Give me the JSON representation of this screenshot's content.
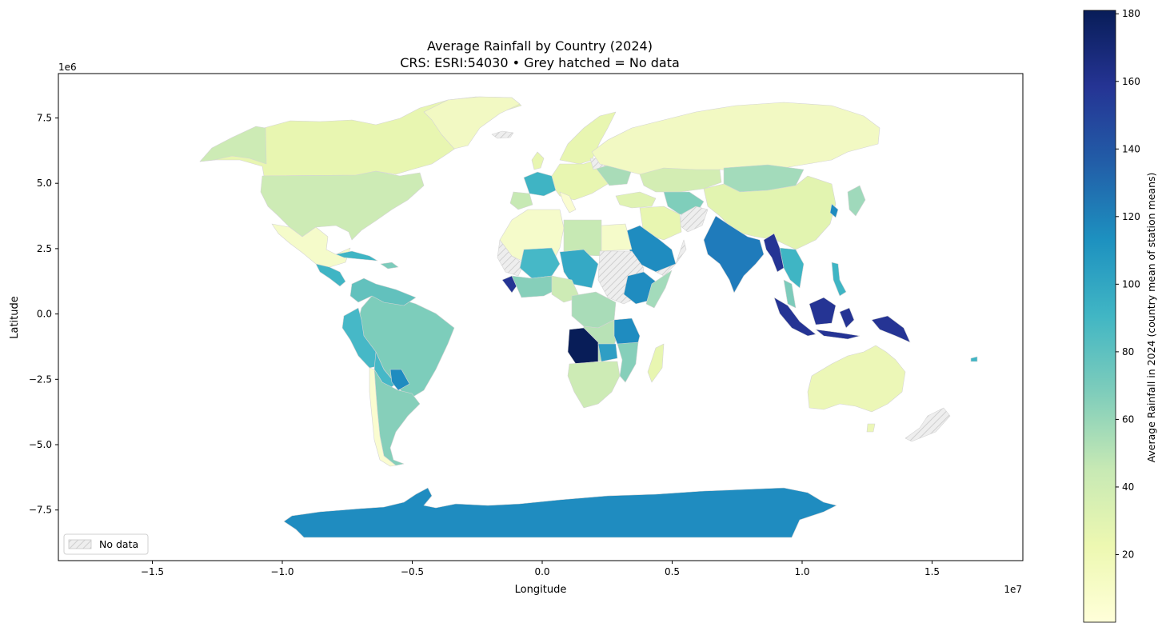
{
  "figure": {
    "title_line1": "Average Rainfall by Country (2024)",
    "title_line2": "CRS: ESRI:54030  •  Grey hatched = No data"
  },
  "axes": {
    "xlabel": "Longitude",
    "ylabel": "Latitude",
    "x_offset_label": "1e7",
    "y_offset_label": "1e6",
    "x_ticks": [
      "−1.5",
      "−1.0",
      "−0.5",
      "0.0",
      "0.5",
      "1.0",
      "1.5"
    ],
    "y_ticks": [
      "7.5",
      "5.0",
      "2.5",
      "0.0",
      "−2.5",
      "−5.0",
      "−7.5"
    ],
    "xlim": [
      -18500000,
      18500000
    ],
    "ylim": [
      -9300000,
      9300000
    ]
  },
  "legend": {
    "label": "No data",
    "placement": "lower-left"
  },
  "colorbar": {
    "label": "Average Rainfall in 2024 (country mean of station means)",
    "ticks": [
      "20",
      "40",
      "60",
      "80",
      "100",
      "120",
      "140",
      "160",
      "180"
    ],
    "range": [
      0,
      181
    ],
    "colormap": [
      "#ffffd9",
      "#edf8b1",
      "#c7e9b4",
      "#7fcdbb",
      "#41b6c4",
      "#1d91c0",
      "#225ea8",
      "#253494",
      "#081d58"
    ]
  },
  "chart_data": {
    "type": "choropleth",
    "projection": "ESRI:54030",
    "value_range": [
      0,
      181
    ],
    "nodata_style": "grey-hatched",
    "regions": [
      {
        "name": "Canada",
        "value": 22
      },
      {
        "name": "United States",
        "value": 40
      },
      {
        "name": "Mexico",
        "value": 20
      },
      {
        "name": "Brazil",
        "value": 65
      },
      {
        "name": "Argentina",
        "value": 55
      },
      {
        "name": "Peru",
        "value": 85
      },
      {
        "name": "Chile",
        "value": 10
      },
      {
        "name": "Russia",
        "value": 15
      },
      {
        "name": "China",
        "value": 25
      },
      {
        "name": "India",
        "value": 120
      },
      {
        "name": "Saudi Arabia",
        "value": 115
      },
      {
        "name": "Myanmar",
        "value": 155
      },
      {
        "name": "Indonesia",
        "value": 160
      },
      {
        "name": "Angola",
        "value": 180
      },
      {
        "name": "Ethiopia",
        "value": 115
      },
      {
        "name": "Australia",
        "value": 20
      },
      {
        "name": "Antarctica",
        "value": 120
      }
    ]
  }
}
